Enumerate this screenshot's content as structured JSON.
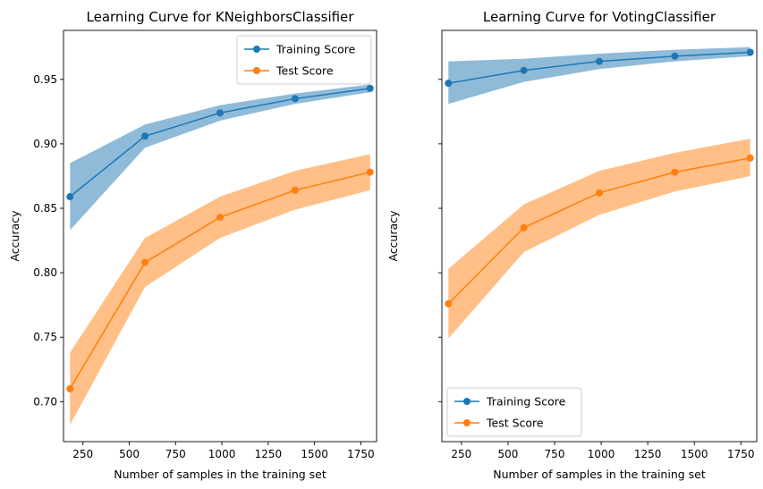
{
  "chart_data": [
    {
      "type": "line",
      "title": "Learning Curve for KNeighborsClassifier",
      "xlabel": "Number of samples in the training set",
      "ylabel": "Accuracy",
      "xlim": [
        145,
        1835
      ],
      "ylim": [
        0.669,
        0.988
      ],
      "xticks": [
        250,
        500,
        750,
        1000,
        1250,
        1500,
        1750
      ],
      "yticks": [
        0.7,
        0.75,
        0.8,
        0.85,
        0.9,
        0.95
      ],
      "ytick_labels_visible": true,
      "x": [
        180,
        585,
        990,
        1395,
        1800
      ],
      "series": [
        {
          "name": "Training Score",
          "color": "#1f77b4",
          "fill_color": "#1f77b4",
          "values": [
            0.859,
            0.906,
            0.924,
            0.935,
            0.943
          ],
          "lower": [
            0.833,
            0.897,
            0.918,
            0.931,
            0.94
          ],
          "upper": [
            0.885,
            0.915,
            0.93,
            0.939,
            0.946
          ]
        },
        {
          "name": "Test Score",
          "color": "#ff7f0e",
          "fill_color": "#ff7f0e",
          "values": [
            0.71,
            0.808,
            0.843,
            0.864,
            0.878
          ],
          "lower": [
            0.682,
            0.789,
            0.827,
            0.849,
            0.864
          ],
          "upper": [
            0.738,
            0.827,
            0.859,
            0.879,
            0.892
          ]
        }
      ],
      "legend": "top-right",
      "grid": false
    },
    {
      "type": "line",
      "title": "Learning Curve for VotingClassifier",
      "xlabel": "Number of samples in the training set",
      "ylabel": "Accuracy",
      "xlim": [
        145,
        1835
      ],
      "ylim": [
        0.669,
        0.988
      ],
      "xticks": [
        250,
        500,
        750,
        1000,
        1250,
        1500,
        1750
      ],
      "yticks": [
        0.7,
        0.75,
        0.8,
        0.85,
        0.9,
        0.95
      ],
      "ytick_labels_visible": false,
      "x": [
        180,
        585,
        990,
        1395,
        1800
      ],
      "series": [
        {
          "name": "Training Score",
          "color": "#1f77b4",
          "fill_color": "#1f77b4",
          "values": [
            0.947,
            0.957,
            0.964,
            0.968,
            0.971
          ],
          "lower": [
            0.931,
            0.948,
            0.958,
            0.964,
            0.968
          ],
          "upper": [
            0.964,
            0.966,
            0.97,
            0.973,
            0.975
          ]
        },
        {
          "name": "Test Score",
          "color": "#ff7f0e",
          "fill_color": "#ff7f0e",
          "values": [
            0.776,
            0.835,
            0.862,
            0.878,
            0.889
          ],
          "lower": [
            0.749,
            0.816,
            0.845,
            0.863,
            0.875
          ],
          "upper": [
            0.803,
            0.853,
            0.879,
            0.893,
            0.904
          ]
        }
      ],
      "legend": "bottom-left",
      "grid": false
    }
  ]
}
